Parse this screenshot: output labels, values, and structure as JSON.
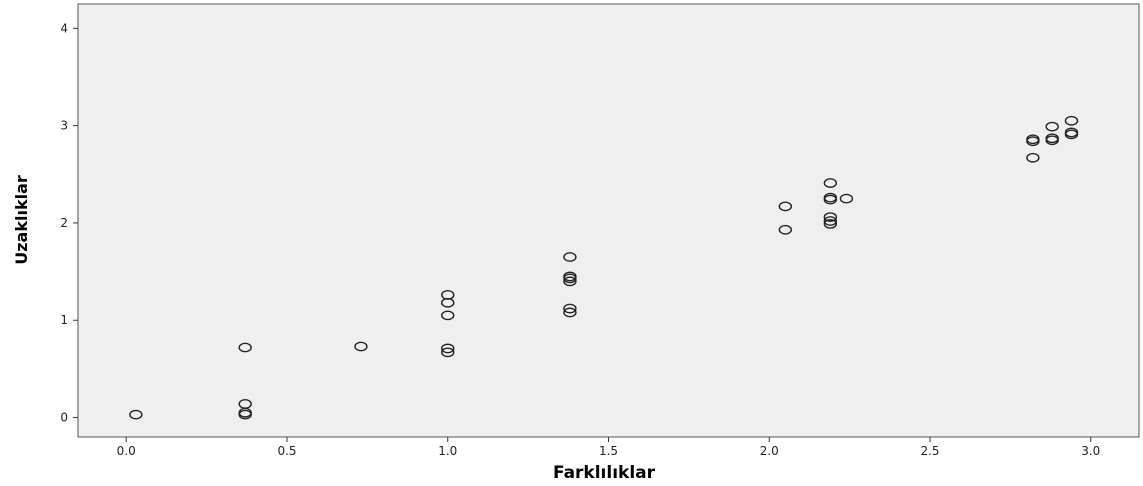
{
  "chart_data": {
    "type": "scatter",
    "title": "",
    "xlabel": "Farklılıklar",
    "ylabel": "Uzaklıklar",
    "xlim": [
      -0.15,
      3.15
    ],
    "ylim": [
      -0.2,
      4.25
    ],
    "x_ticks": [
      0.0,
      0.5,
      1.0,
      1.5,
      2.0,
      2.5,
      3.0
    ],
    "x_tick_labels": [
      "0.0",
      "0.5",
      "1.0",
      "1.5",
      "2.0",
      "2.5",
      "3.0"
    ],
    "y_ticks": [
      0,
      1,
      2,
      3,
      4
    ],
    "y_tick_labels": [
      "0",
      "1",
      "2",
      "3",
      "4"
    ],
    "grid": false,
    "plot_background": "#efefef",
    "marker_color": "#222222",
    "series": [
      {
        "points": [
          [
            0.03,
            0.03
          ],
          [
            0.37,
            0.72
          ],
          [
            0.37,
            0.14
          ],
          [
            0.37,
            0.05
          ],
          [
            0.37,
            0.03
          ],
          [
            0.73,
            0.73
          ],
          [
            1.0,
            1.26
          ],
          [
            1.0,
            1.18
          ],
          [
            1.0,
            1.05
          ],
          [
            1.0,
            0.71
          ],
          [
            1.0,
            0.67
          ],
          [
            1.38,
            1.65
          ],
          [
            1.38,
            1.45
          ],
          [
            1.38,
            1.43
          ],
          [
            1.38,
            1.4
          ],
          [
            1.38,
            1.12
          ],
          [
            1.38,
            1.08
          ],
          [
            2.05,
            2.17
          ],
          [
            2.05,
            1.93
          ],
          [
            2.19,
            2.41
          ],
          [
            2.19,
            2.26
          ],
          [
            2.19,
            2.24
          ],
          [
            2.19,
            2.06
          ],
          [
            2.19,
            2.02
          ],
          [
            2.19,
            1.99
          ],
          [
            2.24,
            2.25
          ],
          [
            2.82,
            2.86
          ],
          [
            2.82,
            2.84
          ],
          [
            2.82,
            2.67
          ],
          [
            2.88,
            2.99
          ],
          [
            2.88,
            2.87
          ],
          [
            2.88,
            2.85
          ],
          [
            2.94,
            3.05
          ],
          [
            2.94,
            2.93
          ],
          [
            2.94,
            2.91
          ]
        ]
      }
    ]
  }
}
